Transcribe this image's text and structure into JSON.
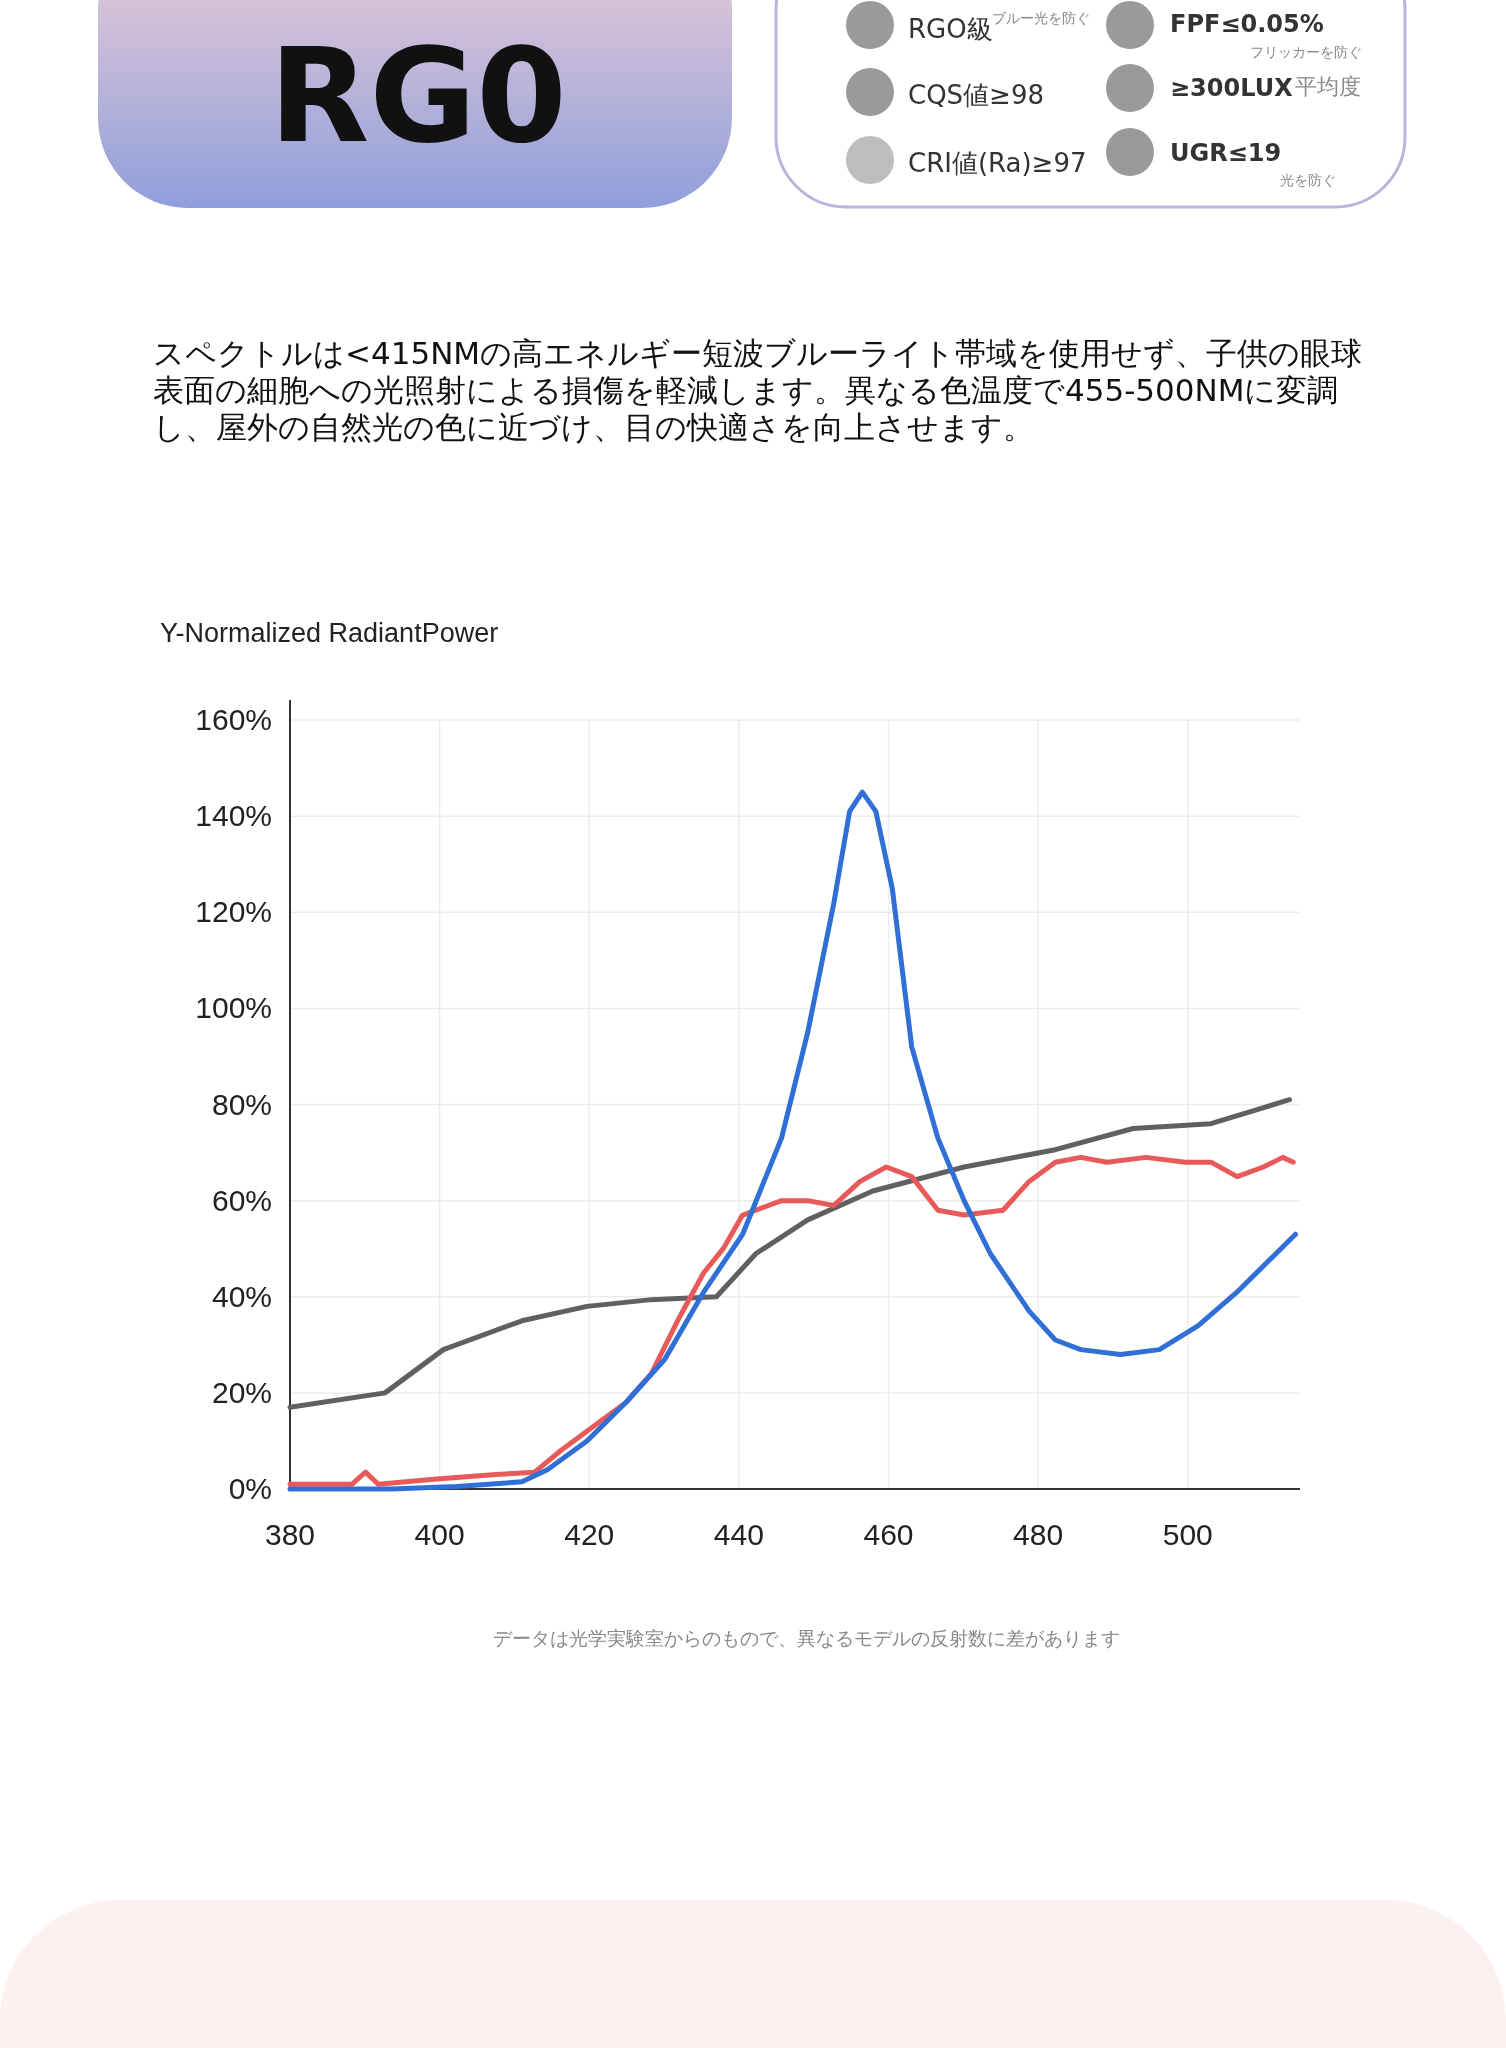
{
  "chart_data": {
    "type": "line",
    "title": "Y-Normalized RadiantPower",
    "annotations": [
      "RG0",
      "RGO級",
      "ブルー光を防ぐ",
      "CQS値≥98",
      "CRI値(Ra)≥97",
      "FPF≤0.05%",
      "フリッカーを防ぐ",
      "≥300LUX",
      "平均度",
      "UGR≤19",
      "光を防ぐ",
      "スペクトルは<415NMの高エネルギー短波ブルーライト帯域を使用せず、子供の眼球表面の細胞への光照射による損傷を軽減します。異なる色温度で455-500NMに変調し、屋外の自然光の色に近づけ、目の快適さを向上させます。",
      "データは光学実験室からのもので、異なるモデルの反射数に差があります"
    ],
    "xlim": [
      380,
      515
    ],
    "xticks": [
      {
        "value": 380,
        "label": "380"
      },
      400,
      420,
      440,
      460,
      480,
      500
    ],
    "ylim": [
      0,
      160
    ],
    "yticks": [
      {
        "value": 0,
        "label": "0%"
      },
      {
        "value": 20,
        "label": "20%"
      },
      {
        "value": 40,
        "label": "40%"
      },
      {
        "value": 60,
        "label": "60%"
      },
      {
        "value": 80,
        "label": "80%"
      },
      {
        "value": 100,
        "label": "100%"
      },
      {
        "value": 120,
        "label": "120%"
      },
      {
        "value": 140,
        "label": "140%"
      },
      {
        "value": 160,
        "label": "160%"
      }
    ],
    "grid": true,
    "line_style": "solid",
    "series": [
      {
        "color": "#606060",
        "x": [
          380,
          392.7,
          400.5,
          411,
          419.7,
          428.3,
          437,
          442.3,
          449.2,
          457.9,
          470.1,
          482.3,
          492.7,
          503.1,
          513.6
        ],
        "values": [
          17,
          20,
          29,
          35,
          38,
          39.4,
          40,
          49,
          56,
          62,
          67,
          70.6,
          75,
          76,
          81
        ]
      },
      {
        "color": "#e85a5a",
        "x": [
          380,
          388.3,
          390.1,
          391.8,
          398.8,
          407.5,
          412.7,
          416.2,
          421.4,
          424.9,
          428.3,
          431.8,
          435.3,
          437.9,
          440.5,
          445.7,
          449.2,
          452.7,
          456.2,
          459.7,
          463.1,
          466.6,
          470.1,
          475.3,
          478.8,
          482.3,
          485.7,
          489.2,
          494.4,
          499.7,
          503.1,
          506.6,
          510.1,
          512.7,
          514.1
        ],
        "values": [
          1,
          1,
          3.5,
          1,
          2,
          3,
          3.5,
          8,
          14,
          18,
          24,
          35,
          45,
          50,
          57,
          60,
          60,
          59,
          64,
          67,
          65,
          58,
          57,
          58,
          64,
          68,
          69,
          68,
          69,
          68,
          68,
          65,
          67,
          69,
          68
        ]
      },
      {
        "color": "#2f6fd6",
        "x": [
          380,
          393.6,
          402.3,
          411,
          414.4,
          419.7,
          424.9,
          430.1,
          435.3,
          440.5,
          445.7,
          449.2,
          452.7,
          454.8,
          456.5,
          458.3,
          460.5,
          463.1,
          466.6,
          470.1,
          473.6,
          478.8,
          482.3,
          485.7,
          491,
          496.2,
          501.4,
          506.6,
          514.4
        ],
        "values": [
          0,
          0,
          0.5,
          1.5,
          4,
          10,
          18,
          27,
          41,
          53,
          73,
          95,
          122,
          141,
          145,
          141,
          125,
          92,
          73,
          60,
          49,
          37,
          31,
          29,
          28,
          29,
          34,
          41,
          53
        ]
      }
    ]
  }
}
